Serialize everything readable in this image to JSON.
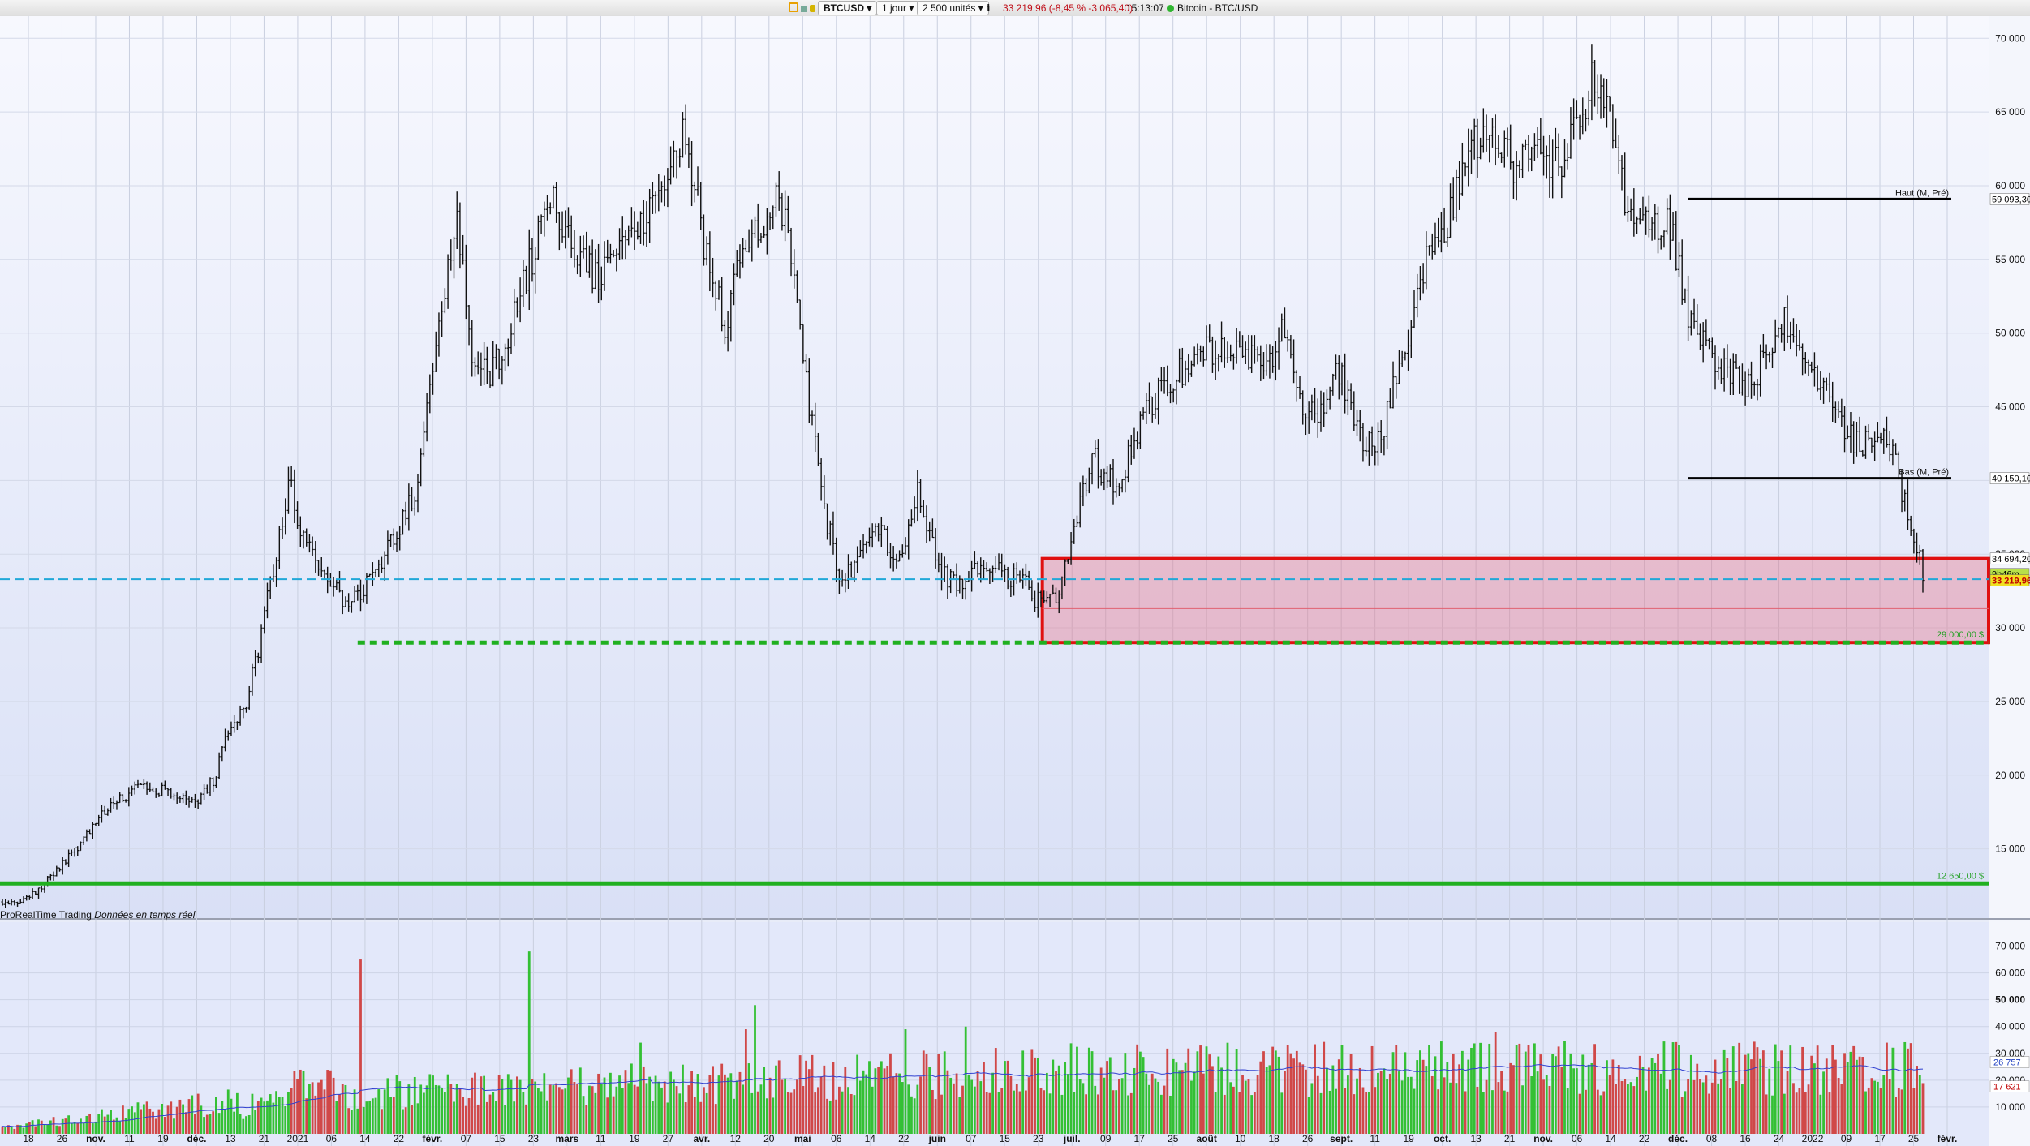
{
  "toolbar": {
    "symbol": "BTCUSD",
    "timeframe": "1 jour",
    "units": "2 500 unités",
    "quote": "33 219,96 (-8,45 % -3 065,40)",
    "time": "15:13:07",
    "instrument": "Bitcoin - BTC/USD"
  },
  "source": {
    "provider": "ProRealTime Trading",
    "realtime": "Données en temps réel"
  },
  "price_axis": {
    "ticks": [
      "70 000",
      "65 000",
      "60 000",
      "55 000",
      "50 000",
      "45 000",
      "40 000",
      "35 000",
      "30 000",
      "25 000",
      "20 000",
      "15 000"
    ],
    "tick_values": [
      70000,
      65000,
      60000,
      55000,
      50000,
      45000,
      40000,
      35000,
      30000,
      25000,
      20000,
      15000
    ],
    "badges": [
      {
        "text": "59 093,30",
        "value": 59093.3,
        "bg": "#ffffff",
        "fg": "#000000"
      },
      {
        "text": "40 150,10",
        "value": 40150.1,
        "bg": "#ffffff",
        "fg": "#000000"
      },
      {
        "text": "34 694,20",
        "value": 34694.2,
        "bg": "#ffffff",
        "fg": "#000000"
      },
      {
        "text": "9h46m",
        "value": 33650,
        "bg": "#b8e04a",
        "fg": "#000000"
      },
      {
        "text": "33 219,96",
        "value": 33219.96,
        "bg": "#f0e020",
        "fg": "#c00000"
      }
    ]
  },
  "levels": {
    "high_label": "Haut (M, Pré)",
    "high_value": 59093.3,
    "low_label": "Bas (M, Pré)",
    "low_value": 40150.1,
    "support_label": "29 000,00 $",
    "support_value": 29000,
    "base_label": "12 650,00 $",
    "base_value": 12650,
    "dashed_value": 33300,
    "zone_top": 34700,
    "zone_bottom": 29000,
    "zone_mid": 31300
  },
  "volume_axis": {
    "ticks": [
      "70 000",
      "60 000",
      "50 000",
      "40 000",
      "30 000",
      "20 000",
      "10 000"
    ],
    "tick_values": [
      70000,
      60000,
      50000,
      40000,
      30000,
      20000,
      10000
    ],
    "badges": [
      {
        "text": "26 757",
        "value": 26757,
        "fg": "#2040c0"
      },
      {
        "text": "17 621",
        "value": 17621,
        "fg": "#c00000"
      }
    ]
  },
  "x_axis_labels": [
    "18",
    "26",
    "nov.",
    "11",
    "19",
    "déc.",
    "13",
    "21",
    "2021",
    "06",
    "14",
    "22",
    "févr.",
    "07",
    "15",
    "23",
    "mars",
    "11",
    "19",
    "27",
    "avr.",
    "12",
    "20",
    "mai",
    "06",
    "14",
    "22",
    "juin",
    "07",
    "15",
    "23",
    "juil.",
    "09",
    "17",
    "25",
    "août",
    "10",
    "18",
    "26",
    "sept.",
    "11",
    "19",
    "oct.",
    "13",
    "21",
    "nov.",
    "06",
    "14",
    "22",
    "déc.",
    "08",
    "16",
    "24",
    "2022",
    "09",
    "17",
    "25",
    "févr."
  ],
  "chart_data": {
    "type": "candlestick",
    "interval": "1 jour",
    "price_path": [
      [
        0,
        11400
      ],
      [
        8,
        11550
      ],
      [
        16,
        13100
      ],
      [
        25,
        15200
      ],
      [
        35,
        17800
      ],
      [
        45,
        19100
      ],
      [
        55,
        19000
      ],
      [
        65,
        18300
      ],
      [
        70,
        19600
      ],
      [
        75,
        23000
      ],
      [
        81,
        25100
      ],
      [
        86,
        29500
      ],
      [
        95,
        40000
      ],
      [
        101,
        35500
      ],
      [
        108,
        33000
      ],
      [
        116,
        31500
      ],
      [
        123,
        33500
      ],
      [
        130,
        36000
      ],
      [
        137,
        39000
      ],
      [
        143,
        47500
      ],
      [
        151,
        58000
      ],
      [
        155,
        49500
      ],
      [
        161,
        47000
      ],
      [
        167,
        49000
      ],
      [
        175,
        54500
      ],
      [
        182,
        59500
      ],
      [
        190,
        56000
      ],
      [
        198,
        53500
      ],
      [
        207,
        57000
      ],
      [
        214,
        58000
      ],
      [
        222,
        61000
      ],
      [
        227,
        64000
      ],
      [
        233,
        56000
      ],
      [
        240,
        50500
      ],
      [
        246,
        56000
      ],
      [
        252,
        57500
      ],
      [
        258,
        59000
      ],
      [
        263,
        55000
      ],
      [
        268,
        45000
      ],
      [
        273,
        38000
      ],
      [
        279,
        33000
      ],
      [
        285,
        35000
      ],
      [
        291,
        37000
      ],
      [
        297,
        34000
      ],
      [
        304,
        39500
      ],
      [
        311,
        34000
      ],
      [
        318,
        32800
      ],
      [
        325,
        34500
      ],
      [
        332,
        33800
      ],
      [
        339,
        33000
      ],
      [
        346,
        31400
      ],
      [
        351,
        32000
      ],
      [
        356,
        36500
      ],
      [
        362,
        41500
      ],
      [
        370,
        39500
      ],
      [
        380,
        45000
      ],
      [
        392,
        47500
      ],
      [
        400,
        49000
      ],
      [
        410,
        48500
      ],
      [
        420,
        47800
      ],
      [
        426,
        50500
      ],
      [
        431,
        45500
      ],
      [
        437,
        44200
      ],
      [
        444,
        47500
      ],
      [
        451,
        43000
      ],
      [
        457,
        42500
      ],
      [
        464,
        47500
      ],
      [
        472,
        54500
      ],
      [
        480,
        57500
      ],
      [
        487,
        62500
      ],
      [
        493,
        64000
      ],
      [
        501,
        61500
      ],
      [
        509,
        62000
      ],
      [
        517,
        61500
      ],
      [
        524,
        64000
      ],
      [
        528,
        67000
      ],
      [
        534,
        65000
      ],
      [
        540,
        58000
      ],
      [
        547,
        57000
      ],
      [
        554,
        57500
      ],
      [
        560,
        51000
      ],
      [
        566,
        49000
      ],
      [
        573,
        47500
      ],
      [
        580,
        46500
      ],
      [
        586,
        48500
      ],
      [
        592,
        51000
      ],
      [
        598,
        48000
      ],
      [
        604,
        47000
      ],
      [
        610,
        44000
      ],
      [
        616,
        42500
      ],
      [
        622,
        43000
      ],
      [
        628,
        42000
      ],
      [
        632,
        38500
      ],
      [
        635,
        35800
      ],
      [
        638,
        35300
      ]
    ],
    "candle_count": 639,
    "price_min": 10300,
    "price_max": 71500,
    "annotations": [
      {
        "text": "Haut (M, Pré)",
        "value": 59093.3
      },
      {
        "text": "Bas (M, Pré)",
        "value": 40150.1
      },
      {
        "text": "29 000,00 $",
        "value": 29000
      },
      {
        "text": "12 650,00 $",
        "value": 12650
      }
    ],
    "volume_max": 75000,
    "volume_spikes": [
      {
        "i": 119,
        "v": 65000
      },
      {
        "i": 175,
        "v": 68000
      },
      {
        "i": 250,
        "v": 48000
      },
      {
        "i": 247,
        "v": 39000
      },
      {
        "i": 212,
        "v": 34000
      },
      {
        "i": 300,
        "v": 39000
      },
      {
        "i": 320,
        "v": 40000
      },
      {
        "i": 496,
        "v": 38000
      },
      {
        "i": 626,
        "v": 34000
      }
    ]
  }
}
